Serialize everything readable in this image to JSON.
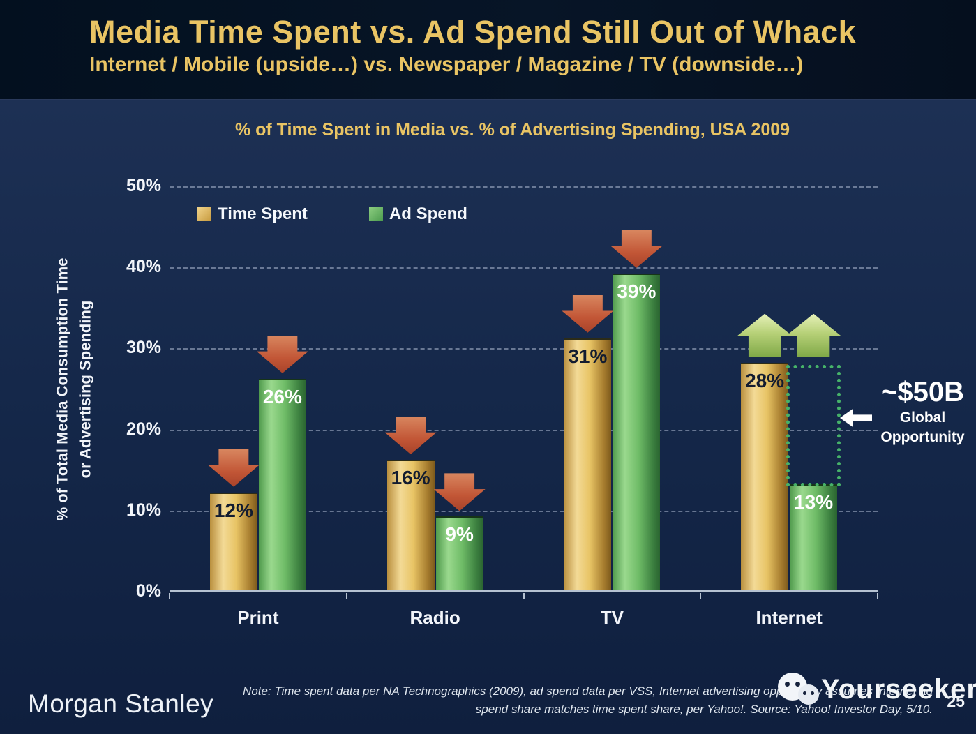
{
  "slide": {
    "title": "Media Time Spent vs. Ad Spend Still Out of Whack",
    "subtitle": "Internet / Mobile (upside…) vs. Newspaper / Magazine / TV (downside…)",
    "page_number": "25"
  },
  "chart_data": {
    "type": "bar",
    "title": "% of Time Spent in Media vs. % of Advertising Spending, USA 2009",
    "categories": [
      "Print",
      "Radio",
      "TV",
      "Internet"
    ],
    "series": [
      {
        "name": "Time Spent",
        "color": "gold",
        "values": [
          12,
          16,
          31,
          28
        ],
        "labels": [
          "12%",
          "16%",
          "31%",
          "28%"
        ]
      },
      {
        "name": "Ad Spend",
        "color": "green",
        "values": [
          26,
          9,
          39,
          13
        ],
        "labels": [
          "26%",
          "9%",
          "39%",
          "13%"
        ]
      }
    ],
    "arrows": [
      [
        "down",
        "down"
      ],
      [
        "down",
        "down"
      ],
      [
        "down",
        "down"
      ],
      [
        "up",
        "up"
      ]
    ],
    "ylabel_line1": "% of Total Media Consumption Time",
    "ylabel_line2": "or Advertising Spending",
    "ylim": [
      0,
      50
    ],
    "yticks": [
      {
        "value": 50,
        "label": "50%"
      },
      {
        "value": 40,
        "label": "40%"
      },
      {
        "value": 30,
        "label": "30%"
      },
      {
        "value": 20,
        "label": "20%"
      },
      {
        "value": 10,
        "label": "10%"
      },
      {
        "value": 0,
        "label": "0%"
      }
    ],
    "grid": "dashed horizontal gridlines",
    "legend_position": "top-left inside plot"
  },
  "opportunity_box": {
    "category": "Internet",
    "from_value": 13,
    "to_value": 28
  },
  "annotation": {
    "value": "~$50B",
    "line1": "Global",
    "line2": "Opportunity"
  },
  "footer": {
    "logo_text": "Morgan Stanley",
    "note_line1": "Note: Time spent data per NA Technographics (2009), ad spend data per VSS, Internet advertising opportunity assumes Internet ad",
    "note_line2": "spend share matches time spent share, per Yahoo!. Source: Yahoo! Investor Day, 5/10.",
    "watermark_text": "Yourseeker"
  },
  "colors": {
    "title_gold": "#e9c464",
    "bar_gold_light": "#f3da96",
    "bar_gold_dark": "#8a6420",
    "bar_green_light": "#9ad98e",
    "bar_green_dark": "#2e6e33",
    "decline_arrow": "#c25636",
    "growth_arrow": "#a7c968",
    "opportunity_box_green": "#46b269",
    "background_navy": "#15284a"
  }
}
